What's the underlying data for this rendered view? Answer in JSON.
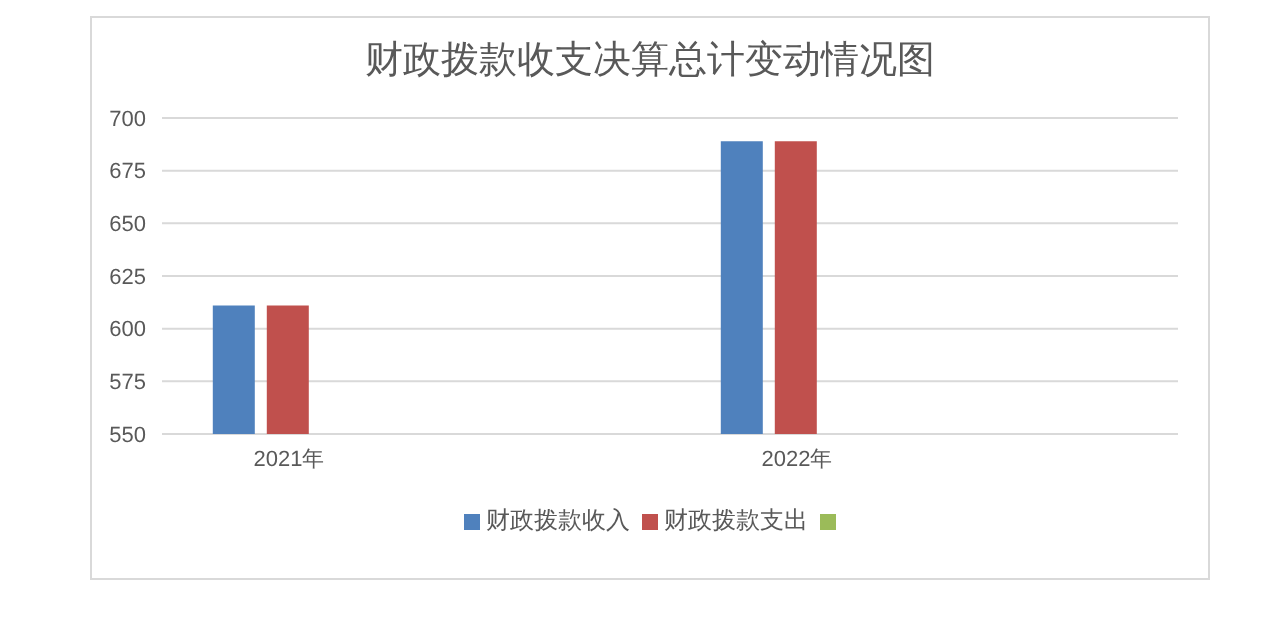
{
  "chart_data": {
    "type": "bar",
    "title": "财政拨款收支决算总计变动情况图",
    "categories": [
      "2021年",
      null,
      "2022年",
      null
    ],
    "series": [
      {
        "name": "财政拨款收入",
        "color": "#4f81bd",
        "values": [
          611,
          null,
          689,
          null
        ]
      },
      {
        "name": "财政拨款支出",
        "color": "#c0504d",
        "values": [
          611,
          null,
          689,
          null
        ]
      },
      {
        "color": "#9bbb59",
        "values": [
          null,
          null,
          null,
          null
        ]
      }
    ],
    "ylim": [
      550,
      700
    ],
    "yticks": [
      550,
      575,
      600,
      625,
      650,
      675,
      700
    ],
    "grid": "y",
    "legend": "bottom"
  }
}
